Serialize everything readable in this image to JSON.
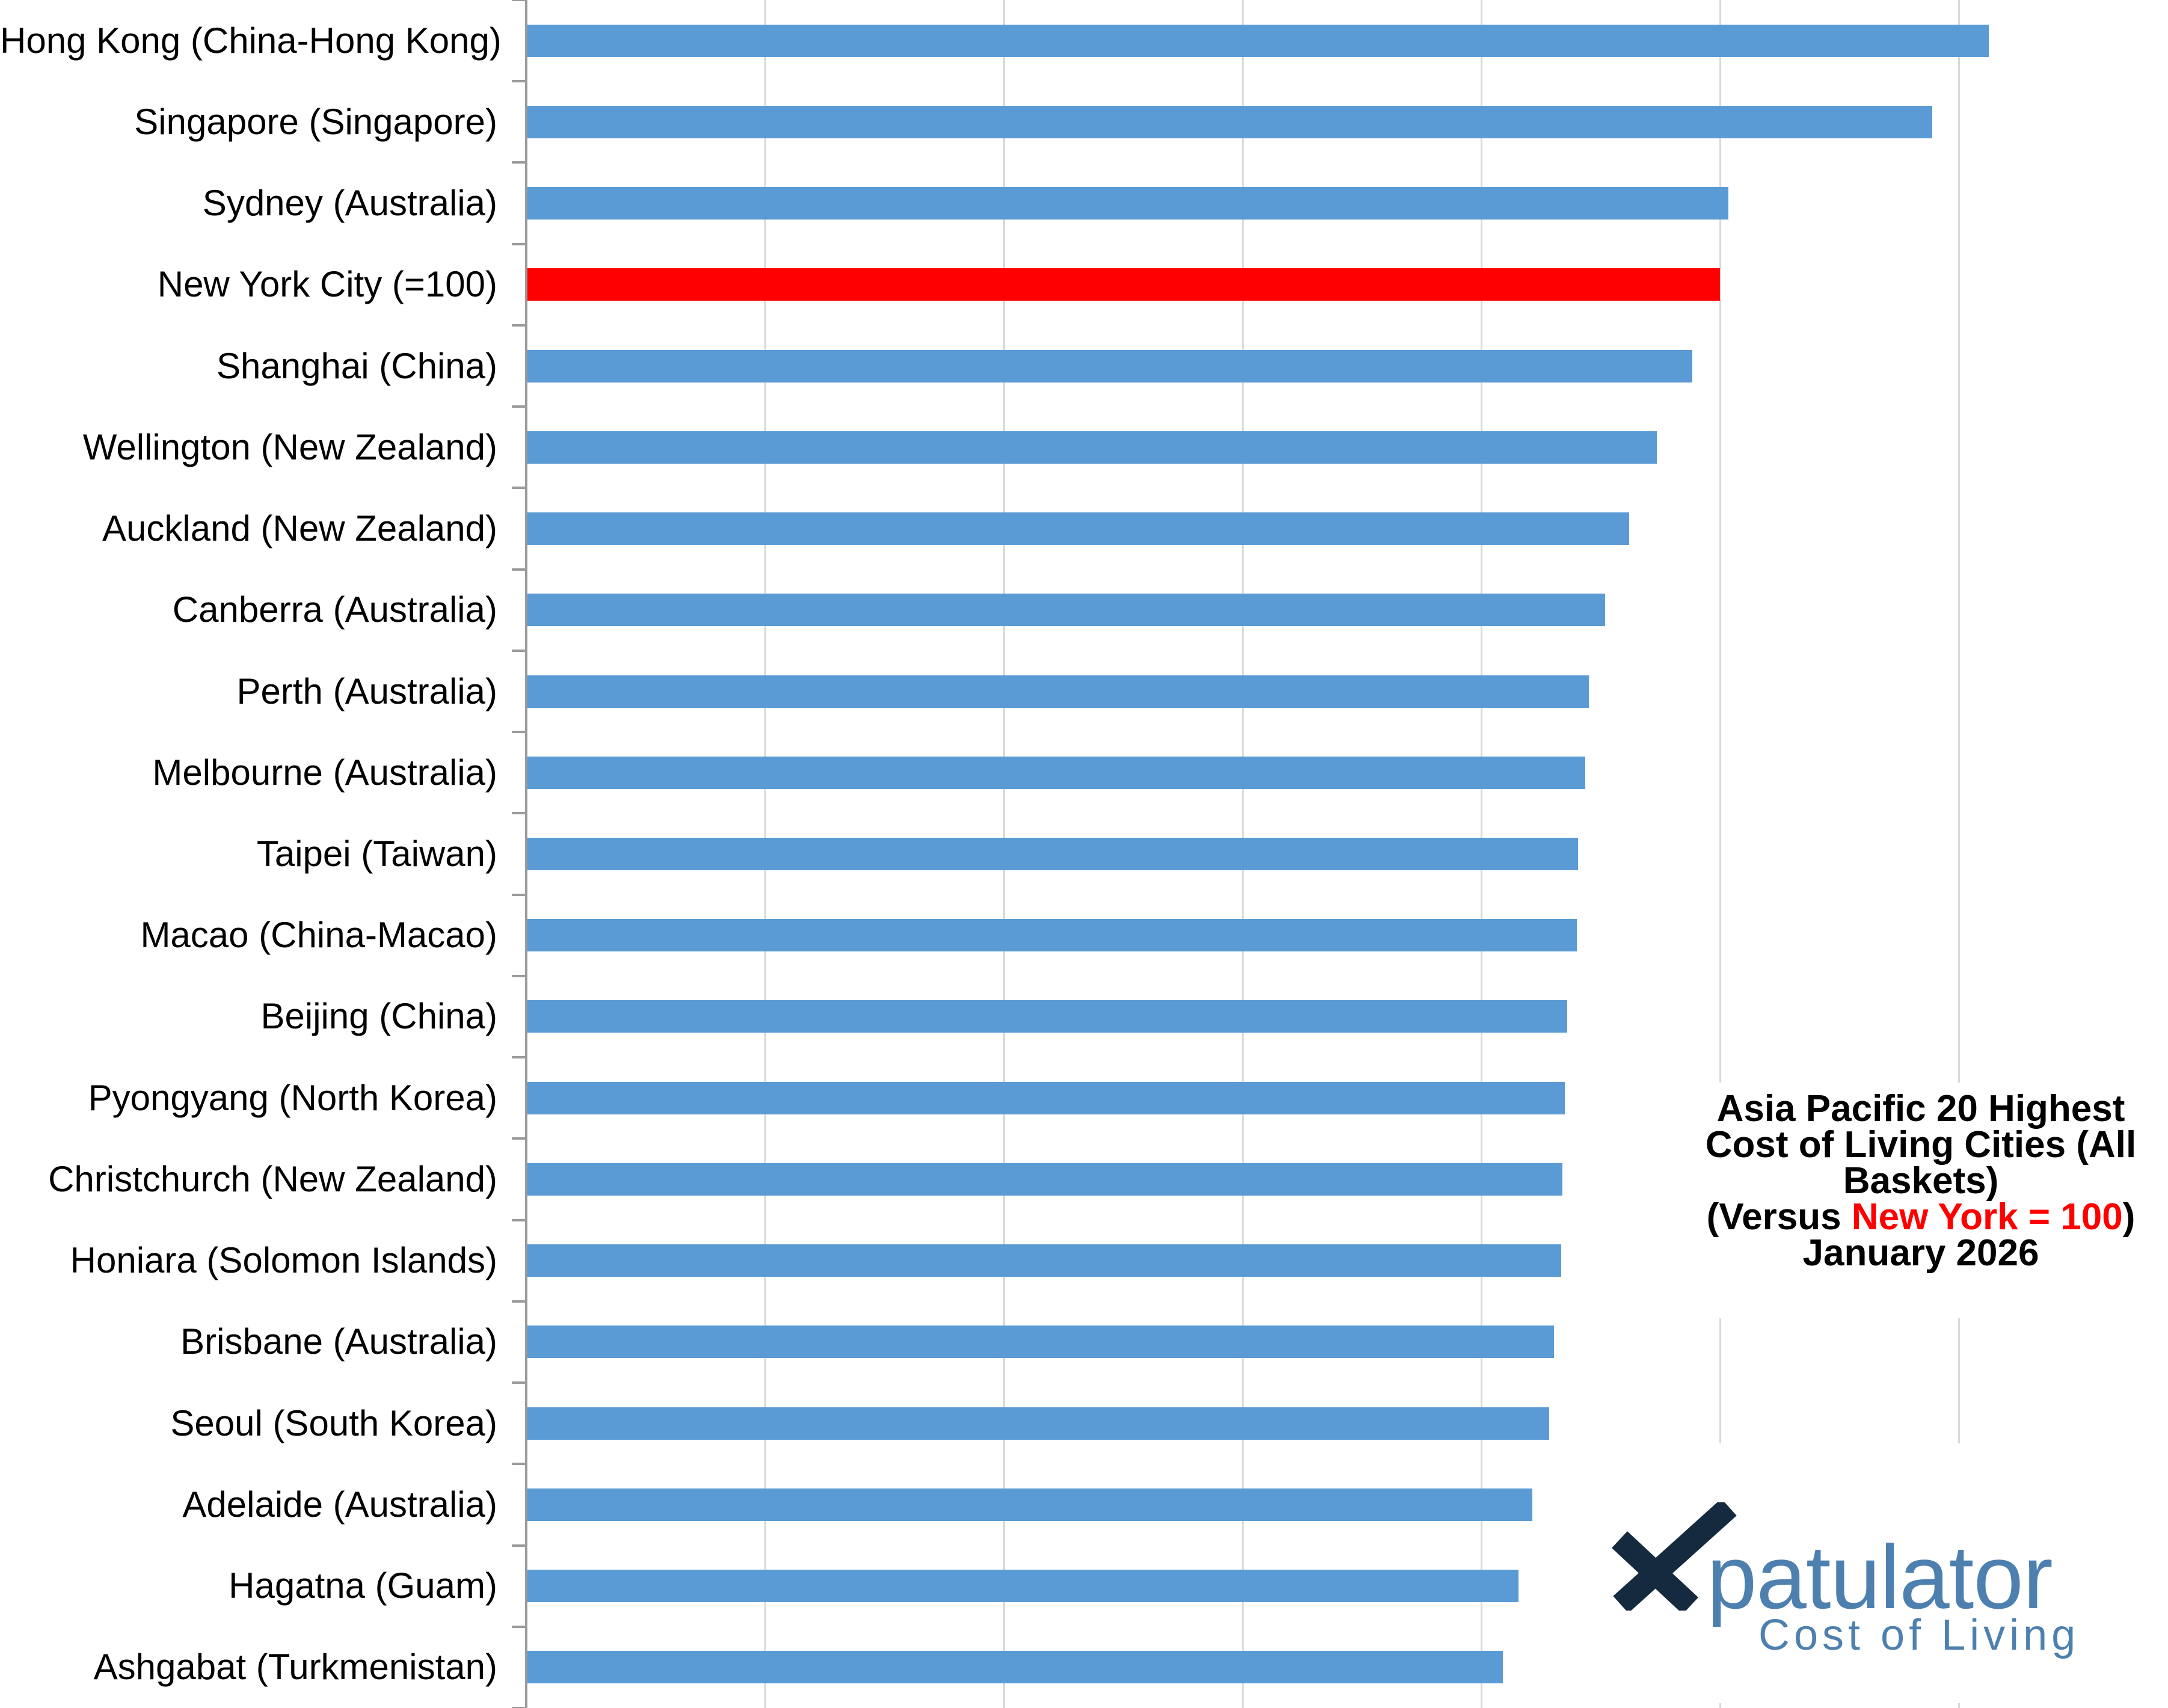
{
  "chart_data": {
    "type": "bar",
    "orientation": "horizontal",
    "title": "Asia Pacific 20 Highest Cost of Living Cities (All Baskets) (Versus New York = 100) January 2026",
    "categories": [
      "Hong Kong (China-Hong Kong)",
      "Singapore (Singapore)",
      "Sydney (Australia)",
      "New York City (=100)",
      "Shanghai (China)",
      "Wellington (New Zealand)",
      "Auckland (New Zealand)",
      "Canberra (Australia)",
      "Perth (Australia)",
      "Melbourne (Australia)",
      "Taipei (Taiwan)",
      "Macao (China-Macao)",
      "Beijing (China)",
      "Pyongyang (North Korea)",
      "Christchurch (New Zealand)",
      "Honiara (Solomon Islands)",
      "Brisbane (Australia)",
      "Seoul (South Korea)",
      "Adelaide (Australia)",
      "Hagatna (Guam)",
      "Ashgabat (Turkmenistan)"
    ],
    "values": [
      122.5,
      117.8,
      100.7,
      100,
      97.7,
      94.7,
      92.4,
      90.4,
      89.0,
      88.7,
      88.1,
      88.0,
      87.2,
      87.0,
      86.8,
      86.7,
      86.1,
      85.7,
      84.3,
      83.1,
      81.8
    ],
    "highlight_category": "New York City (=100)",
    "highlight_index": 3,
    "bar_color": "#5b9bd5",
    "highlight_color": "#ff0000",
    "xlabel": "",
    "ylabel": "",
    "xlim": [
      0,
      137.5
    ],
    "gridlines": [
      20,
      40,
      60,
      80,
      100,
      120
    ],
    "grid": "vertical-light-gray",
    "legend_position": "none",
    "value_axis_labels_visible": false
  },
  "title_block": {
    "line1": "Asia Pacific 20 Highest",
    "line2": "Cost of Living Cities (All",
    "line3": "Baskets)",
    "line4_prefix": "(Versus ",
    "line4_red": "New York = 100",
    "line4_suffix": ")",
    "line5": "January 2026",
    "red_color": "#ff0000"
  },
  "logo": {
    "wordmark": "patulator",
    "tagline": "Cost of Living",
    "x_mark_color": "#152a3e",
    "blue_color": "#4e80af"
  }
}
